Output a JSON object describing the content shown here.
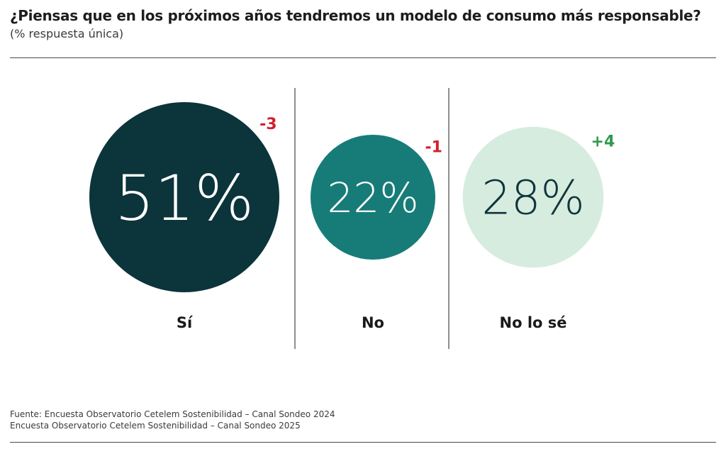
{
  "title": "¿Piensas que en los próximos años tendremos un modelo de consumo más responsable?",
  "subtitle": "(% respuesta única)",
  "source": {
    "line1": "Fuente: Encuesta Observatorio Cetelem Sostenibilidad – Canal Sondeo 2024",
    "line2": "Encuesta Observatorio Cetelem Sostenibilidad – Canal Sondeo 2025"
  },
  "colors": {
    "si": "#0b343b",
    "no": "#177c78",
    "nolose": "#d6ecdf",
    "negative": "#d0202d",
    "positive": "#2e9a4f"
  },
  "chart_data": {
    "type": "bubble",
    "title": "¿Piensas que en los próximos años tendremos un modelo de consumo más responsable?",
    "unit": "%",
    "categories": [
      "Sí",
      "No",
      "No lo sé"
    ],
    "values": [
      51,
      22,
      28
    ],
    "value_labels": [
      "51%",
      "22%",
      "28%"
    ],
    "changes": [
      -3,
      -1,
      4
    ],
    "change_labels": [
      "-3",
      "-1",
      "+4"
    ]
  }
}
